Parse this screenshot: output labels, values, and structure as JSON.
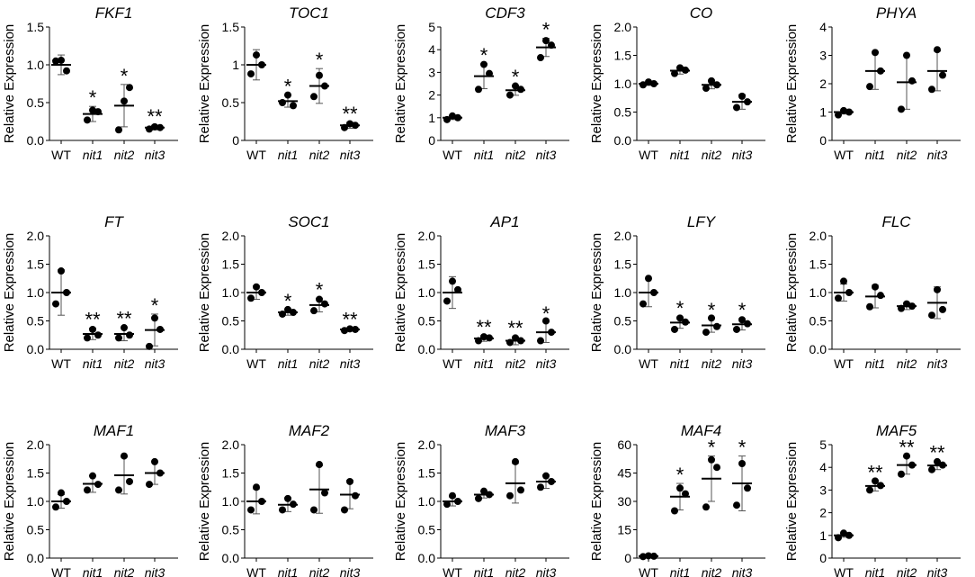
{
  "chart_data": [
    {
      "type": "scatter",
      "title": "FKF1",
      "ylabel": "Relative Expression",
      "yticks": [
        "0.0",
        "0.5",
        "1.0",
        "1.5"
      ],
      "ylim": [
        0,
        1.5
      ],
      "categories": [
        "WT",
        "nit1",
        "nit2",
        "nit3"
      ],
      "points": [
        [
          1.05,
          0.92,
          1.06
        ],
        [
          0.27,
          0.38,
          0.4
        ],
        [
          0.14,
          0.7,
          0.52
        ],
        [
          0.15,
          0.17,
          0.18
        ]
      ],
      "means": [
        1.0,
        0.35,
        0.46,
        0.17
      ],
      "errors": [
        0.13,
        0.1,
        0.28,
        0.03
      ],
      "significance": [
        "",
        "*",
        "*",
        "**"
      ]
    },
    {
      "type": "scatter",
      "title": "TOC1",
      "ylabel": "Relative Expression",
      "yticks": [
        "0",
        "0.5",
        "1",
        "1.5"
      ],
      "ylim": [
        0,
        1.5
      ],
      "categories": [
        "WT",
        "nit1",
        "nit2",
        "nit3"
      ],
      "points": [
        [
          0.88,
          1.0,
          1.13
        ],
        [
          0.5,
          0.46,
          0.6
        ],
        [
          0.58,
          0.72,
          0.86
        ],
        [
          0.17,
          0.2,
          0.22
        ]
      ],
      "means": [
        1.0,
        0.52,
        0.72,
        0.2
      ],
      "errors": [
        0.2,
        0.08,
        0.23,
        0.04
      ],
      "significance": [
        "",
        "*",
        "*",
        "**"
      ]
    },
    {
      "type": "scatter",
      "title": "CDF3",
      "ylabel": "Relative Expression",
      "yticks": [
        "0",
        "1",
        "2",
        "3",
        "4",
        "5"
      ],
      "ylim": [
        0,
        5
      ],
      "categories": [
        "WT",
        "nit1",
        "nit2",
        "nit3"
      ],
      "points": [
        [
          0.92,
          1.0,
          1.08
        ],
        [
          2.25,
          2.95,
          3.35
        ],
        [
          2.0,
          2.25,
          2.4
        ],
        [
          3.65,
          4.2,
          4.4
        ]
      ],
      "means": [
        1.0,
        2.83,
        2.21,
        4.1
      ],
      "errors": [
        0.08,
        0.55,
        0.22,
        0.4
      ],
      "significance": [
        "",
        "*",
        "*",
        "*"
      ]
    },
    {
      "type": "scatter",
      "title": "CO",
      "ylabel": "Relative Expression",
      "yticks": [
        "0.0",
        "0.5",
        "1.0",
        "1.5",
        "2.0"
      ],
      "ylim": [
        0,
        2
      ],
      "categories": [
        "WT",
        "nit1",
        "nit2",
        "nit3"
      ],
      "points": [
        [
          0.98,
          1.0,
          1.03
        ],
        [
          1.18,
          1.24,
          1.28
        ],
        [
          0.92,
          0.98,
          1.05
        ],
        [
          0.58,
          0.68,
          0.78
        ]
      ],
      "means": [
        1.0,
        1.23,
        0.98,
        0.68
      ],
      "errors": [
        0.03,
        0.06,
        0.07,
        0.13
      ],
      "significance": [
        "",
        "",
        "",
        ""
      ]
    },
    {
      "type": "scatter",
      "title": "PHYA",
      "ylabel": "Relative Expression",
      "yticks": [
        "0",
        "1",
        "2",
        "3",
        "4"
      ],
      "ylim": [
        0,
        4
      ],
      "categories": [
        "WT",
        "nit1",
        "nit2",
        "nit3"
      ],
      "points": [
        [
          0.9,
          1.0,
          1.05
        ],
        [
          1.9,
          2.45,
          3.1
        ],
        [
          1.1,
          2.1,
          3.0
        ],
        [
          1.8,
          2.3,
          3.2
        ]
      ],
      "means": [
        1.0,
        2.45,
        2.05,
        2.45
      ],
      "errors": [
        0.07,
        0.65,
        0.95,
        0.7
      ],
      "significance": [
        "",
        "",
        "",
        ""
      ]
    },
    {
      "type": "scatter",
      "title": "FT",
      "ylabel": "Relative Expression",
      "yticks": [
        "0.0",
        "0.5",
        "1.0",
        "1.5",
        "2.0"
      ],
      "ylim": [
        0,
        2
      ],
      "categories": [
        "WT",
        "nit1",
        "nit2",
        "nit3"
      ],
      "points": [
        [
          0.8,
          1.0,
          1.38
        ],
        [
          0.2,
          0.25,
          0.35
        ],
        [
          0.2,
          0.25,
          0.38
        ],
        [
          0.05,
          0.35,
          0.55
        ]
      ],
      "means": [
        1.0,
        0.27,
        0.27,
        0.34
      ],
      "errors": [
        0.4,
        0.1,
        0.12,
        0.28
      ],
      "significance": [
        "",
        "**",
        "**",
        "*"
      ]
    },
    {
      "type": "scatter",
      "title": "SOC1",
      "ylabel": "Relative Expression",
      "yticks": [
        "0.0",
        "0.5",
        "1.0",
        "1.5",
        "2.0"
      ],
      "ylim": [
        0,
        2
      ],
      "categories": [
        "WT",
        "nit1",
        "nit2",
        "nit3"
      ],
      "points": [
        [
          0.9,
          1.0,
          1.1
        ],
        [
          0.62,
          0.65,
          0.7
        ],
        [
          0.68,
          0.8,
          0.88
        ],
        [
          0.33,
          0.35,
          0.36
        ]
      ],
      "means": [
        1.0,
        0.65,
        0.78,
        0.35
      ],
      "errors": [
        0.12,
        0.05,
        0.12,
        0.02
      ],
      "significance": [
        "",
        "*",
        "*",
        "**"
      ]
    },
    {
      "type": "scatter",
      "title": "AP1",
      "ylabel": "Relative Expression",
      "yticks": [
        "0.0",
        "0.5",
        "1.0",
        "1.5",
        "2.0"
      ],
      "ylim": [
        0,
        2
      ],
      "categories": [
        "WT",
        "nit1",
        "nit2",
        "nit3"
      ],
      "points": [
        [
          0.85,
          1.05,
          1.2
        ],
        [
          0.15,
          0.2,
          0.22
        ],
        [
          0.12,
          0.15,
          0.2
        ],
        [
          0.15,
          0.3,
          0.5
        ]
      ],
      "means": [
        1.0,
        0.19,
        0.15,
        0.3
      ],
      "errors": [
        0.28,
        0.05,
        0.07,
        0.18
      ],
      "significance": [
        "",
        "**",
        "**",
        "*"
      ]
    },
    {
      "type": "scatter",
      "title": "LFY",
      "ylabel": "Relative Expression",
      "yticks": [
        "0.0",
        "0.5",
        "1.0",
        "1.5",
        "2.0"
      ],
      "ylim": [
        0,
        2
      ],
      "categories": [
        "WT",
        "nit1",
        "nit2",
        "nit3"
      ],
      "points": [
        [
          0.8,
          1.0,
          1.25
        ],
        [
          0.35,
          0.48,
          0.55
        ],
        [
          0.3,
          0.4,
          0.55
        ],
        [
          0.35,
          0.45,
          0.52
        ]
      ],
      "means": [
        1.0,
        0.47,
        0.42,
        0.44
      ],
      "errors": [
        0.25,
        0.1,
        0.12,
        0.1
      ],
      "significance": [
        "",
        "*",
        "*",
        "*"
      ]
    },
    {
      "type": "scatter",
      "title": "FLC",
      "ylabel": "Relative Expression",
      "yticks": [
        "0.0",
        "0.5",
        "1.0",
        "1.5",
        "2.0"
      ],
      "ylim": [
        0,
        2
      ],
      "categories": [
        "WT",
        "nit1",
        "nit2",
        "nit3"
      ],
      "points": [
        [
          0.9,
          1.0,
          1.2
        ],
        [
          0.75,
          0.95,
          1.1
        ],
        [
          0.72,
          0.76,
          0.8
        ],
        [
          0.6,
          0.7,
          1.05
        ]
      ],
      "means": [
        1.0,
        0.93,
        0.76,
        0.82
      ],
      "errors": [
        0.15,
        0.2,
        0.06,
        0.28
      ],
      "significance": [
        "",
        "",
        "",
        ""
      ]
    },
    {
      "type": "scatter",
      "title": "MAF1",
      "ylabel": "Relative Expression",
      "yticks": [
        "0.0",
        "0.5",
        "1.0",
        "1.5",
        "2.0"
      ],
      "ylim": [
        0,
        2
      ],
      "categories": [
        "WT",
        "nit1",
        "nit2",
        "nit3"
      ],
      "points": [
        [
          0.9,
          1.0,
          1.15
        ],
        [
          1.2,
          1.3,
          1.45
        ],
        [
          1.2,
          1.35,
          1.8
        ],
        [
          1.3,
          1.5,
          1.7
        ]
      ],
      "means": [
        1.0,
        1.31,
        1.46,
        1.5
      ],
      "errors": [
        0.12,
        0.15,
        0.33,
        0.2
      ],
      "significance": [
        "",
        "",
        "",
        ""
      ]
    },
    {
      "type": "scatter",
      "title": "MAF2",
      "ylabel": "Relative Expression",
      "yticks": [
        "0.0",
        "0.5",
        "1.0",
        "1.5",
        "2.0"
      ],
      "ylim": [
        0,
        2
      ],
      "categories": [
        "WT",
        "nit1",
        "nit2",
        "nit3"
      ],
      "points": [
        [
          0.85,
          1.0,
          1.25
        ],
        [
          0.85,
          0.95,
          1.05
        ],
        [
          0.85,
          1.15,
          1.65
        ],
        [
          0.85,
          1.1,
          1.35
        ]
      ],
      "means": [
        1.0,
        0.94,
        1.21,
        1.12
      ],
      "errors": [
        0.22,
        0.12,
        0.42,
        0.25
      ],
      "significance": [
        "",
        "",
        "",
        ""
      ]
    },
    {
      "type": "scatter",
      "title": "MAF3",
      "ylabel": "Relative Expression",
      "yticks": [
        "0.0",
        "0.5",
        "1.0",
        "1.5",
        "2.0"
      ],
      "ylim": [
        0,
        2
      ],
      "categories": [
        "WT",
        "nit1",
        "nit2",
        "nit3"
      ],
      "points": [
        [
          0.95,
          1.0,
          1.1
        ],
        [
          1.05,
          1.12,
          1.18
        ],
        [
          1.1,
          1.2,
          1.7
        ],
        [
          1.25,
          1.35,
          1.45
        ]
      ],
      "means": [
        1.0,
        1.12,
        1.32,
        1.35
      ],
      "errors": [
        0.08,
        0.06,
        0.35,
        0.12
      ],
      "significance": [
        "",
        "",
        "",
        ""
      ]
    },
    {
      "type": "scatter",
      "title": "MAF4",
      "ylabel": "Relative Expression",
      "yticks": [
        "0",
        "15",
        "30",
        "45",
        "60"
      ],
      "ylim": [
        0,
        60
      ],
      "categories": [
        "WT",
        "nit1",
        "nit2",
        "nit3"
      ],
      "points": [
        [
          0.8,
          1.0,
          1.2
        ],
        [
          25.0,
          34.0,
          37.0
        ],
        [
          27.0,
          48.0,
          52.0
        ],
        [
          28.0,
          37.0,
          50.0
        ]
      ],
      "means": [
        1.0,
        32.5,
        42.0,
        39.5
      ],
      "errors": [
        0.3,
        7.0,
        12.0,
        14.5
      ],
      "significance": [
        "",
        "*",
        "*",
        "*"
      ]
    },
    {
      "type": "scatter",
      "title": "MAF5",
      "ylabel": "Relative Expression",
      "yticks": [
        "0",
        "1",
        "2",
        "3",
        "4",
        "5"
      ],
      "ylim": [
        0,
        5
      ],
      "categories": [
        "WT",
        "nit1",
        "nit2",
        "nit3"
      ],
      "points": [
        [
          0.9,
          1.0,
          1.1
        ],
        [
          3.0,
          3.2,
          3.4
        ],
        [
          3.7,
          4.1,
          4.5
        ],
        [
          3.9,
          4.1,
          4.25
        ]
      ],
      "means": [
        1.0,
        3.18,
        4.1,
        4.08
      ],
      "errors": [
        0.08,
        0.22,
        0.4,
        0.18
      ],
      "significance": [
        "",
        "**",
        "**",
        "**"
      ]
    }
  ]
}
